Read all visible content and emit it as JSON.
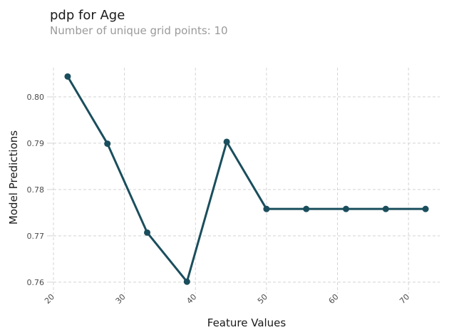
{
  "header": {
    "title": "pdp for Age",
    "subtitle": "Number of unique grid points: 10"
  },
  "chart_data": {
    "type": "line",
    "title": "pdp for Age",
    "subtitle": "Number of unique grid points: 10",
    "xlabel": "Feature Values",
    "ylabel": "Model Predictions",
    "x": [
      22.0,
      27.6,
      33.2,
      38.8,
      44.4,
      50.0,
      55.6,
      61.2,
      66.8,
      72.4
    ],
    "y": [
      0.8044,
      0.7899,
      0.7707,
      0.7601,
      0.7903,
      0.7758,
      0.7758,
      0.7758,
      0.7758,
      0.7758
    ],
    "x_ticks": [
      20,
      30,
      40,
      50,
      60,
      70
    ],
    "y_ticks": [
      0.76,
      0.77,
      0.78,
      0.79,
      0.8
    ],
    "x_range": [
      20.0,
      74.4
    ],
    "y_range": [
      0.7589,
      0.8063
    ],
    "grid": true,
    "grid_style": "dashed",
    "x_tick_rotation": 45,
    "legend": "none",
    "marker": "circle"
  },
  "colors": {
    "line": "#1A4E5D",
    "marker": "#1A4E5D",
    "grid": "#d4d4d4",
    "tick_label": "#4d4d4d",
    "title": "#1a1a1a",
    "subtitle": "#9a9a9a",
    "axis_label": "#1a1a1a",
    "background": "#ffffff"
  }
}
